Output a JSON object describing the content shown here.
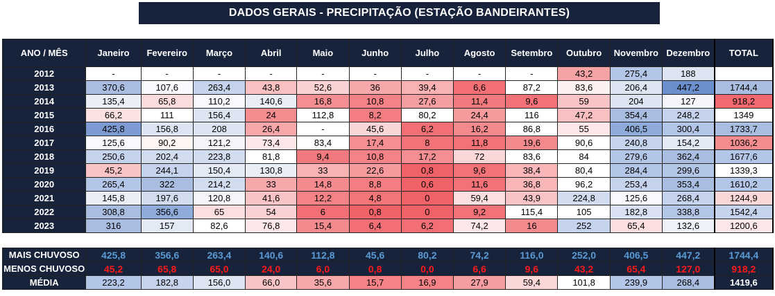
{
  "title": "DADOS GERAIS - PRECIPITAÇÃO (ESTAÇÃO BANDEIRANTES)",
  "header": [
    "ANO / MÊS",
    "Janeiro",
    "Fevereiro",
    "Março",
    "Abril",
    "Maio",
    "Junho",
    "Julho",
    "Agosto",
    "Setembro",
    "Outubro",
    "Novembro",
    "Dezembro",
    "TOTAL"
  ],
  "rows": [
    {
      "year": "2012",
      "values": [
        "-",
        "-",
        "-",
        "-",
        "-",
        "-",
        "-",
        "-",
        "-",
        "43,2",
        "275,4",
        "188"
      ],
      "colors": [
        "#fff",
        "#fff",
        "#fff",
        "#fff",
        "#fff",
        "#fff",
        "#fff",
        "#fff",
        "#fff",
        "#f6a3a6",
        "#b4c6e7",
        "#dde4f2"
      ],
      "total": "",
      "total_color": "#fff"
    },
    {
      "year": "2013",
      "values": [
        "370,6",
        "107,6",
        "263,4",
        "43,8",
        "52,6",
        "36",
        "39,4",
        "6,6",
        "87,2",
        "83,6",
        "206,4",
        "447,2"
      ],
      "colors": [
        "#a9bde0",
        "#f8f9fc",
        "#c5d3ec",
        "#f9c0c2",
        "#fad2d3",
        "#f7a8aa",
        "#f8b2b4",
        "#f27075",
        "#ffffff",
        "#fdf0f0",
        "#dde4f2",
        "#6b8fcc"
      ],
      "total": "1744,4",
      "total_color": "#a9bde0"
    },
    {
      "year": "2014",
      "values": [
        "135,4",
        "65,8",
        "110,2",
        "140,6",
        "16,8",
        "10,8",
        "27,6",
        "11,4",
        "9,6",
        "59",
        "204",
        "127"
      ],
      "colors": [
        "#eaeef7",
        "#fbdcdd",
        "#f9fafd",
        "#e8edf6",
        "#f48e92",
        "#f48286",
        "#f59ea1",
        "#f17a7e",
        "#f27277",
        "#f9c4c6",
        "#dde4f2",
        "#f4f6fb"
      ],
      "total": "918,2",
      "total_color": "#f26a6f"
    },
    {
      "year": "2015",
      "values": [
        "66,2",
        "111",
        "156,4",
        "24",
        "112,8",
        "8,2",
        "80,2",
        "24,4",
        "116",
        "47,2",
        "354,4",
        "248,2"
      ],
      "colors": [
        "#fbe1e2",
        "#ffffff",
        "#dde4f2",
        "#f58c90",
        "#ffffff",
        "#f47d81",
        "#ffffff",
        "#f59a9d",
        "#ffffff",
        "#f9c0c2",
        "#a9bde0",
        "#c5d3ec"
      ],
      "total": "1349",
      "total_color": "#ffffff"
    },
    {
      "year": "2016",
      "values": [
        "425,8",
        "156,8",
        "208",
        "26,4",
        "-",
        "45,6",
        "6,2",
        "16,2",
        "86,8",
        "55",
        "406,5",
        "300,4"
      ],
      "colors": [
        "#7d9bd2",
        "#dde4f2",
        "#dde4f2",
        "#f7a6a9",
        "#ffffff",
        "#fad5d6",
        "#f27075",
        "#f48a8e",
        "#ffffff",
        "#fde7e8",
        "#8eabd9",
        "#b4c6e7"
      ],
      "total": "1733,7",
      "total_color": "#a9bde0"
    },
    {
      "year": "2017",
      "values": [
        "125,6",
        "90,2",
        "121,2",
        "73,4",
        "83,4",
        "17,4",
        "8",
        "11,8",
        "19,6",
        "90,6",
        "240,8",
        "154,2"
      ],
      "colors": [
        "#f8f9fc",
        "#fef5f5",
        "#f4f6fb",
        "#fde7e8",
        "#ffffff",
        "#f48e92",
        "#f17378",
        "#f27277",
        "#f48a8e",
        "#ffffff",
        "#c5d3ec",
        "#e3e9f5"
      ],
      "total": "1036,2",
      "total_color": "#f58c90"
    },
    {
      "year": "2018",
      "values": [
        "250,6",
        "202,4",
        "223,8",
        "81,8",
        "9,4",
        "10,8",
        "17,2",
        "72",
        "83,6",
        "84",
        "279,6",
        "362,4"
      ],
      "colors": [
        "#c5d3ec",
        "#d2dcef",
        "#d2dcef",
        "#ffffff",
        "#f17a7e",
        "#f48286",
        "#f48e92",
        "#fbd7d8",
        "#ffffff",
        "#ffffff",
        "#b4c6e7",
        "#a9bde0"
      ],
      "total": "1677,6",
      "total_color": "#b4c6e7"
    },
    {
      "year": "2019",
      "values": [
        "45,2",
        "244,1",
        "150,4",
        "130,8",
        "33",
        "22,6",
        "0,8",
        "9,6",
        "38,4",
        "80,4",
        "284,4",
        "299,6"
      ],
      "colors": [
        "#f9c4c6",
        "#c5d3ec",
        "#e3e9f5",
        "#eaeef7",
        "#f8b2b4",
        "#f59a9d",
        "#f16268",
        "#f27277",
        "#f8b6b8",
        "#ffffff",
        "#b4c6e7",
        "#b4c6e7"
      ],
      "total": "1339,3",
      "total_color": "#ffffff"
    },
    {
      "year": "2020",
      "values": [
        "265,4",
        "322",
        "214,2",
        "33",
        "14,8",
        "8,8",
        "0,6",
        "11,6",
        "36,8",
        "96,2",
        "253,4",
        "353,4"
      ],
      "colors": [
        "#b4c6e7",
        "#a9bde0",
        "#d2dcef",
        "#f7a8aa",
        "#f48a8e",
        "#f47d81",
        "#f16268",
        "#f27277",
        "#f8b6b8",
        "#ffffff",
        "#c5d3ec",
        "#a9bde0"
      ],
      "total": "1610,2",
      "total_color": "#b4c6e7"
    },
    {
      "year": "2021",
      "values": [
        "145,8",
        "197,6",
        "120,8",
        "41,6",
        "12,2",
        "4,8",
        "0",
        "59,4",
        "43,9",
        "224,8",
        "125,6",
        "268,4"
      ],
      "colors": [
        "#eaeef7",
        "#d2dcef",
        "#f4f6fb",
        "#f9c4c6",
        "#f48286",
        "#f27578",
        "#f16268",
        "#fbdfe0",
        "#f9c4c6",
        "#d2dcef",
        "#f8f9fc",
        "#c5d3ec"
      ],
      "total": "1244,9",
      "total_color": "#fbd7d8"
    },
    {
      "year": "2022",
      "values": [
        "308,8",
        "356,6",
        "65",
        "54",
        "6",
        "0,8",
        "0",
        "9,2",
        "115,4",
        "105",
        "182,8",
        "338,8"
      ],
      "colors": [
        "#a9bde0",
        "#8eabd9",
        "#fbdfe0",
        "#fbd2d3",
        "#f27075",
        "#f16268",
        "#f16268",
        "#f27277",
        "#ffffff",
        "#ffffff",
        "#d9e1f2",
        "#b4c6e7"
      ],
      "total": "1542,4",
      "total_color": "#c5d3ec"
    },
    {
      "year": "2023",
      "values": [
        "316",
        "157",
        "82,6",
        "76,8",
        "15,4",
        "6,4",
        "6,2",
        "74,2",
        "16",
        "252",
        "65,4",
        "132,6"
      ],
      "colors": [
        "#a9bde0",
        "#e3e9f5",
        "#ffffff",
        "#fde7e8",
        "#f48a8e",
        "#f27075",
        "#f27075",
        "#fde7e8",
        "#f48a8e",
        "#c5d3ec",
        "#fbdfe0",
        "#eef1f8"
      ],
      "total": "1200,6",
      "total_color": "#fde7e8"
    }
  ],
  "summary": {
    "max": {
      "label": "MAIS CHUVOSO",
      "values": [
        "425,8",
        "356,6",
        "263,4",
        "140,6",
        "112,8",
        "45,6",
        "80,2",
        "74,2",
        "116,0",
        "252,0",
        "406,5",
        "447,2"
      ],
      "total": "1744,4"
    },
    "min": {
      "label": "MENOS CHUVOSO",
      "values": [
        "45,2",
        "65,8",
        "65,0",
        "24,0",
        "6,0",
        "0,8",
        "0,0",
        "6,6",
        "9,6",
        "43,2",
        "65,4",
        "127,0"
      ],
      "total": "918,2"
    },
    "avg": {
      "label": "MÉDIA",
      "values": [
        "223,2",
        "182,8",
        "156,0",
        "66,0",
        "35,6",
        "15,7",
        "16,9",
        "27,9",
        "59,4",
        "101,8",
        "239,9",
        "268,4"
      ],
      "colors": [
        "#b4c6e7",
        "#c5d3ec",
        "#dde4f2",
        "#f9c4c6",
        "#f7a8aa",
        "#f48286",
        "#f48286",
        "#f59ea1",
        "#fbd7d8",
        "#ffffff",
        "#b4c6e7",
        "#a9bde0"
      ],
      "total": "1419,6"
    }
  }
}
